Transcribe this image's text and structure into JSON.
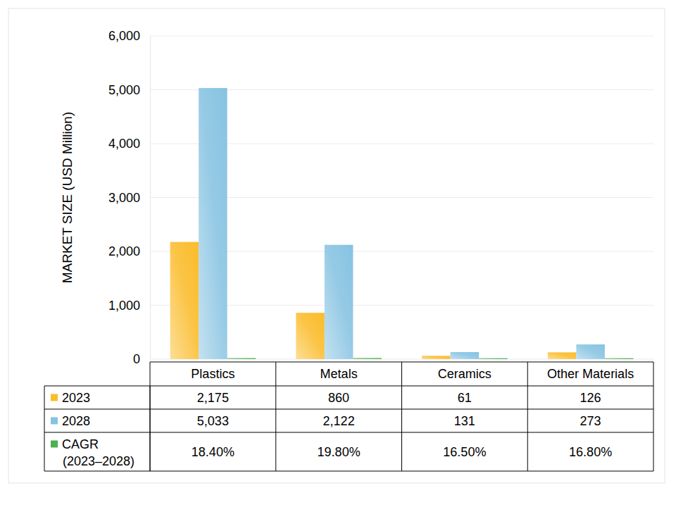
{
  "chart_data": {
    "type": "bar",
    "y_label": "MARKET SIZE (USD Million)",
    "categories": [
      "Plastics",
      "Metals",
      "Ceramics",
      "Other Materials"
    ],
    "series": [
      {
        "name": "2023",
        "color": "#fbbc2c",
        "values": [
          2175,
          860,
          61,
          126
        ],
        "value_labels": [
          "2,175",
          "860",
          "61",
          "126"
        ]
      },
      {
        "name": "2028",
        "color": "#86c3e2",
        "values": [
          5033,
          2122,
          131,
          273
        ],
        "value_labels": [
          "5,033",
          "2,122",
          "131",
          "273"
        ]
      },
      {
        "name": "CAGR (2023–2028)",
        "color": "#4caf50",
        "values": [
          18.4,
          19.8,
          16.5,
          16.8
        ],
        "value_labels": [
          "18.40%",
          "19.80%",
          "16.50%",
          "16.80%"
        ]
      }
    ],
    "ylim": [
      0,
      6000
    ],
    "yticks": [
      0,
      {
        "value": 1000,
        "label": "1,000"
      },
      {
        "value": 2000,
        "label": "2,000"
      },
      {
        "value": 3000,
        "label": "3,000"
      },
      {
        "value": 4000,
        "label": "4,000"
      },
      {
        "value": 5000,
        "label": "5,000"
      },
      {
        "value": 6000,
        "label": "6,000"
      }
    ],
    "grid": true
  }
}
